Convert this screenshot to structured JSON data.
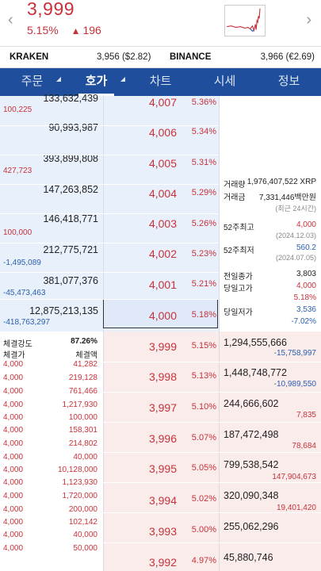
{
  "header": {
    "price": "3,999",
    "change_pct": "5.15%",
    "change_icon": "triangle-up-icon",
    "change_amt": "196",
    "nav_left": "‹",
    "nav_right": "›"
  },
  "exchanges": [
    {
      "name": "KRAKEN",
      "value": "3,956 ($2.82)"
    },
    {
      "name": "BINANCE",
      "value": "3,966 (€2.69)"
    }
  ],
  "tabs": [
    {
      "label": "주문",
      "active": false
    },
    {
      "label": "호가",
      "active": true
    },
    {
      "label": "차트",
      "active": false
    },
    {
      "label": "시세",
      "active": false
    },
    {
      "label": "정보",
      "active": false
    }
  ],
  "asks": [
    {
      "qty": "133,632,439",
      "chg": "100,225",
      "chg_color": "red",
      "price": "4,007",
      "pct": "5.36%"
    },
    {
      "qty": "90,993,987",
      "chg": "",
      "chg_color": "red",
      "price": "4,006",
      "pct": "5.34%"
    },
    {
      "qty": "393,899,808",
      "chg": "427,723",
      "chg_color": "red",
      "price": "4,005",
      "pct": "5.31%"
    },
    {
      "qty": "147,263,852",
      "chg": "",
      "chg_color": "red",
      "price": "4,004",
      "pct": "5.29%"
    },
    {
      "qty": "146,418,771",
      "chg": "100,000",
      "chg_color": "red",
      "price": "4,003",
      "pct": "5.26%"
    },
    {
      "qty": "212,775,721",
      "chg": "-1,495,089",
      "chg_color": "blue",
      "price": "4,002",
      "pct": "5.23%"
    },
    {
      "qty": "381,077,376",
      "chg": "-45,473,463",
      "chg_color": "blue",
      "price": "4,001",
      "pct": "5.21%"
    },
    {
      "qty": "12,875,213,135",
      "chg": "-418,763,297",
      "chg_color": "blue",
      "price": "4,000",
      "pct": "5.18%"
    }
  ],
  "info": {
    "volume_label": "거래량",
    "volume": "1,976,407,522 XRP",
    "amount_label": "거래금",
    "amount": "7,331,446백만원",
    "period_note": "(최근 24시간)",
    "high52_label": "52주최고",
    "high52": "4,000",
    "high52_date": "(2024.12.03)",
    "low52_label": "52주최저",
    "low52": "560.2",
    "low52_date": "(2024.07.05)",
    "prev_close_label": "전일종가",
    "prev_close": "3,803",
    "day_high_label": "당일고가",
    "day_high": "4,000",
    "day_high_pct": "5.18%",
    "day_low_label": "당일저가",
    "day_low": "3,536",
    "day_low_pct": "-7.02%"
  },
  "trades": {
    "strength_label": "체결강도",
    "strength": "87.26%",
    "price_header": "체결가",
    "qty_header": "체결액",
    "rows": [
      {
        "price": "4,000",
        "qty": "41,282"
      },
      {
        "price": "4,000",
        "qty": "219,128"
      },
      {
        "price": "4,000",
        "qty": "761,466"
      },
      {
        "price": "4,000",
        "qty": "1,217,930"
      },
      {
        "price": "4,000",
        "qty": "100,000"
      },
      {
        "price": "4,000",
        "qty": "158,301"
      },
      {
        "price": "4,000",
        "qty": "214,802"
      },
      {
        "price": "4,000",
        "qty": "40,000"
      },
      {
        "price": "4,000",
        "qty": "10,128,000"
      },
      {
        "price": "4,000",
        "qty": "1,123,930"
      },
      {
        "price": "4,000",
        "qty": "1,720,000"
      },
      {
        "price": "4,000",
        "qty": "200,000"
      },
      {
        "price": "4,000",
        "qty": "102,142"
      },
      {
        "price": "4,000",
        "qty": "40,000"
      },
      {
        "price": "4,000",
        "qty": "50,000"
      }
    ]
  },
  "bids": [
    {
      "price": "3,999",
      "pct": "5.15%",
      "qty": "1,294,555,666",
      "chg": "-15,758,997",
      "chg_color": "blue"
    },
    {
      "price": "3,998",
      "pct": "5.13%",
      "qty": "1,448,748,772",
      "chg": "-10,989,550",
      "chg_color": "blue"
    },
    {
      "price": "3,997",
      "pct": "5.10%",
      "qty": "244,666,602",
      "chg": "7,835",
      "chg_color": "red"
    },
    {
      "price": "3,996",
      "pct": "5.07%",
      "qty": "187,472,498",
      "chg": "78,684",
      "chg_color": "red"
    },
    {
      "price": "3,995",
      "pct": "5.05%",
      "qty": "799,538,542",
      "chg": "147,904,673",
      "chg_color": "red"
    },
    {
      "price": "3,994",
      "pct": "5.02%",
      "qty": "320,090,348",
      "chg": "19,401,420",
      "chg_color": "red"
    },
    {
      "price": "3,993",
      "pct": "5.00%",
      "qty": "255,062,296",
      "chg": "",
      "chg_color": "red"
    },
    {
      "price": "3,992",
      "pct": "4.97%",
      "qty": "45,880,746",
      "chg": "",
      "chg_color": "red"
    }
  ]
}
